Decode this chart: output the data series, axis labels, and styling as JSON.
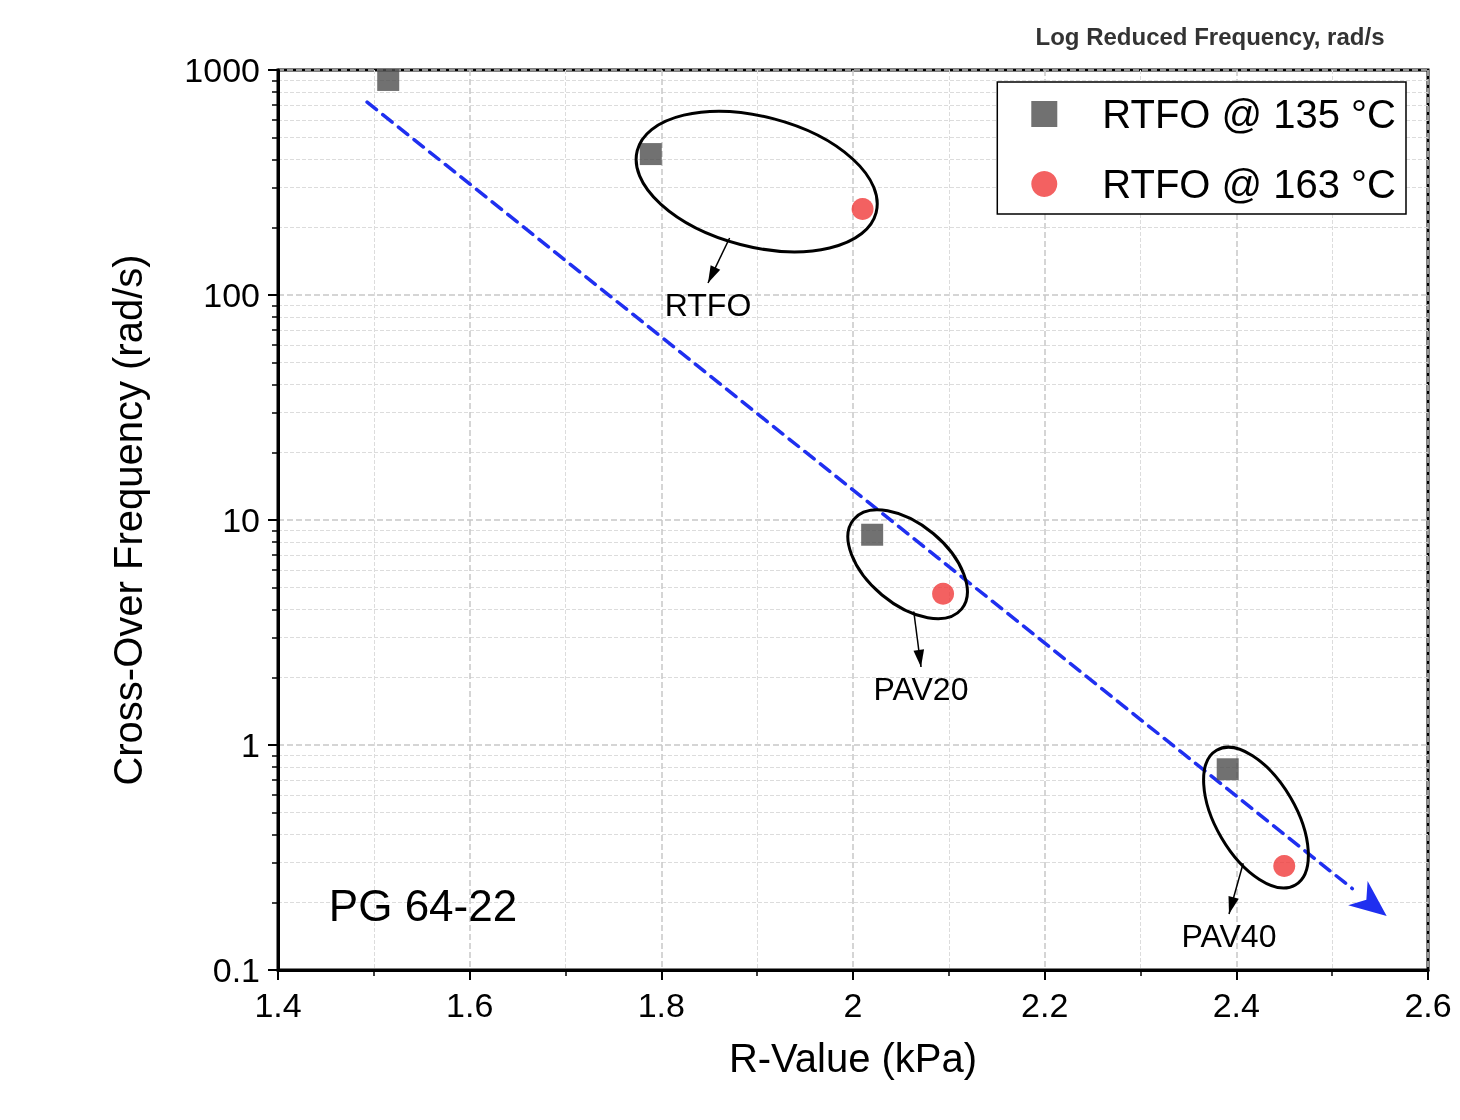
{
  "chart_data": {
    "type": "scatter",
    "xlabel": "R-Value (kPa)",
    "ylabel": "Cross-Over Frequency (rad/s)",
    "series": [
      {
        "name": "RTFO @ 135 °C",
        "color": "#4d4d4d",
        "marker": "square",
        "x": [
          1.515,
          1.789,
          2.02,
          2.391
        ],
        "values": [
          903,
          423,
          8.6,
          0.78
        ]
      },
      {
        "name": "RTFO @ 163 °C",
        "color": "#f03a3a",
        "marker": "circle",
        "x": [
          2.01,
          2.094,
          2.45
        ],
        "values": [
          241,
          4.7,
          0.29
        ]
      },
      {
        "type": "line",
        "color": "#1f2ff0",
        "marker": "none",
        "line_style": "dashed",
        "x": [
          1.493,
          2.521
        ],
        "values": [
          720,
          0.23
        ]
      }
    ],
    "xlim": [
      1.4,
      2.6
    ],
    "xticks": [
      1.4,
      1.6,
      1.8,
      2,
      2.2,
      2.4,
      2.6
    ],
    "ylim": [
      0.1,
      1000
    ],
    "yticks": [
      0.1,
      1,
      10,
      100,
      1000
    ],
    "log": "y",
    "grid": true,
    "legend": "top right",
    "annotations": [
      "RTFO",
      "PAV20",
      "PAV40",
      "PG 64-22",
      "Log Reduced Frequency, rad/s"
    ]
  }
}
